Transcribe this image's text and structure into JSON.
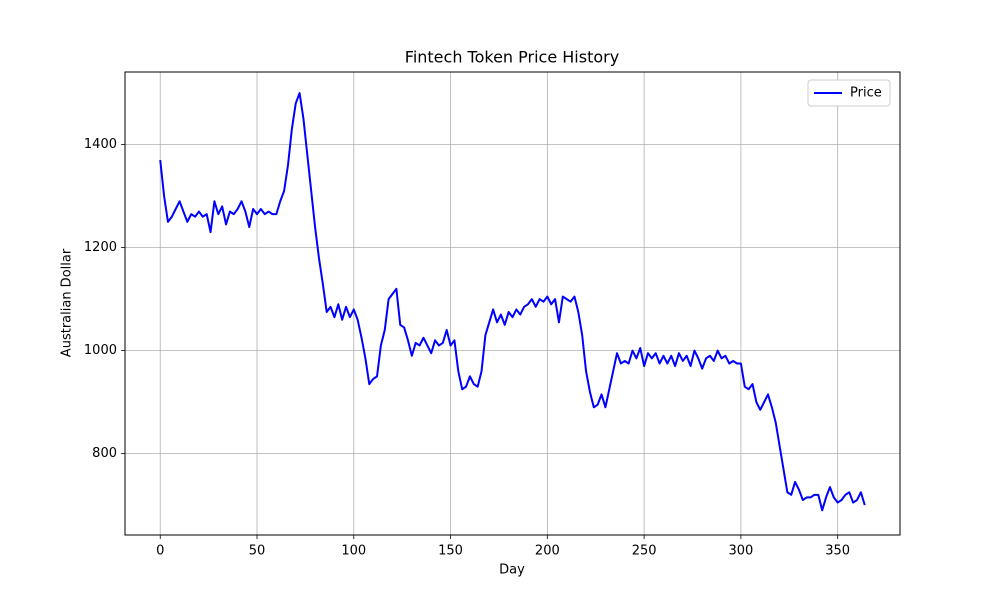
{
  "chart_data": {
    "type": "line",
    "title": "Fintech Token Price History",
    "xlabel": "Day",
    "ylabel": "Australian Dollar",
    "x": [
      0,
      2,
      4,
      6,
      8,
      10,
      12,
      14,
      16,
      18,
      20,
      22,
      24,
      26,
      28,
      30,
      32,
      34,
      36,
      38,
      40,
      42,
      44,
      46,
      48,
      50,
      52,
      54,
      56,
      58,
      60,
      62,
      64,
      66,
      68,
      70,
      72,
      74,
      76,
      78,
      80,
      82,
      84,
      86,
      88,
      90,
      92,
      94,
      96,
      98,
      100,
      102,
      104,
      106,
      108,
      110,
      112,
      114,
      116,
      118,
      120,
      122,
      124,
      126,
      128,
      130,
      132,
      134,
      136,
      138,
      140,
      142,
      144,
      146,
      148,
      150,
      152,
      154,
      156,
      158,
      160,
      162,
      164,
      166,
      168,
      170,
      172,
      174,
      176,
      178,
      180,
      182,
      184,
      186,
      188,
      190,
      192,
      194,
      196,
      198,
      200,
      202,
      204,
      206,
      208,
      210,
      212,
      214,
      216,
      218,
      220,
      222,
      224,
      226,
      228,
      230,
      232,
      234,
      236,
      238,
      240,
      242,
      244,
      246,
      248,
      250,
      252,
      254,
      256,
      258,
      260,
      262,
      264,
      266,
      268,
      270,
      272,
      274,
      276,
      278,
      280,
      282,
      284,
      286,
      288,
      290,
      292,
      294,
      296,
      298,
      300,
      302,
      304,
      306,
      308,
      310,
      312,
      314,
      316,
      318,
      320,
      322,
      324,
      326,
      328,
      330,
      332,
      334,
      336,
      338,
      340,
      342,
      344,
      346,
      348,
      350,
      352,
      354,
      356,
      358,
      360,
      362,
      364
    ],
    "series": [
      {
        "name": "Price",
        "color": "#0000ff",
        "values": [
          1370,
          1300,
          1250,
          1260,
          1275,
          1290,
          1270,
          1250,
          1265,
          1260,
          1270,
          1260,
          1265,
          1230,
          1290,
          1265,
          1280,
          1245,
          1270,
          1265,
          1275,
          1290,
          1270,
          1240,
          1275,
          1265,
          1275,
          1265,
          1270,
          1265,
          1265,
          1290,
          1310,
          1360,
          1430,
          1480,
          1500,
          1450,
          1380,
          1310,
          1240,
          1180,
          1130,
          1075,
          1085,
          1065,
          1090,
          1060,
          1085,
          1065,
          1080,
          1060,
          1025,
          985,
          935,
          945,
          950,
          1010,
          1040,
          1100,
          1110,
          1120,
          1050,
          1045,
          1020,
          990,
          1015,
          1010,
          1025,
          1010,
          995,
          1020,
          1010,
          1015,
          1040,
          1010,
          1020,
          960,
          925,
          930,
          950,
          935,
          930,
          960,
          1030,
          1055,
          1080,
          1055,
          1070,
          1050,
          1075,
          1065,
          1080,
          1070,
          1085,
          1090,
          1100,
          1085,
          1100,
          1095,
          1105,
          1090,
          1100,
          1055,
          1105,
          1100,
          1095,
          1105,
          1075,
          1030,
          960,
          920,
          890,
          895,
          915,
          890,
          925,
          960,
          995,
          975,
          980,
          975,
          1000,
          985,
          1005,
          970,
          995,
          985,
          995,
          975,
          990,
          975,
          990,
          970,
          995,
          980,
          990,
          970,
          1000,
          985,
          965,
          985,
          990,
          980,
          1000,
          985,
          990,
          975,
          980,
          975,
          975,
          930,
          925,
          935,
          900,
          885,
          900,
          915,
          890,
          860,
          815,
          770,
          725,
          720,
          745,
          730,
          710,
          715,
          715,
          720,
          720,
          690,
          715,
          735,
          715,
          705,
          710,
          720,
          725,
          705,
          710,
          725,
          700
        ]
      }
    ],
    "xlim": [
      -18.2,
      382.2
    ],
    "ylim": [
      642,
      1541
    ],
    "xticks": [
      0,
      50,
      100,
      150,
      200,
      250,
      300,
      350
    ],
    "yticks": [
      800,
      1000,
      1200,
      1400
    ],
    "grid": true,
    "legend": "upper right"
  }
}
